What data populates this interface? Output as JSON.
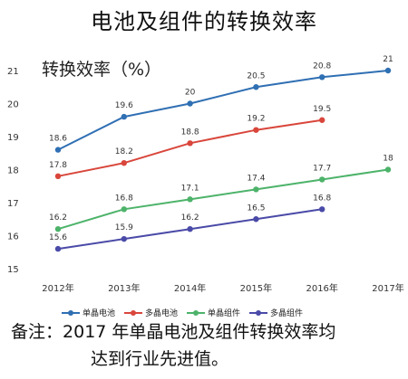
{
  "title": "电池及组件的转换效率",
  "note": {
    "prefix": "备注：",
    "line1": "2017 年单晶电池及组件转换效率均",
    "line2": "达到行业先进值。"
  },
  "chart_data": {
    "type": "line",
    "title": "电池及组件的转换效率",
    "ylabel": "转换效率（%）",
    "xlabel": "",
    "categories": [
      "2012 年",
      "2013 年",
      "2014 年",
      "2015 年",
      "2016 年",
      "2017 年"
    ],
    "ylim": [
      15,
      21
    ],
    "yticks": [
      15,
      16,
      17,
      18,
      19,
      20,
      21
    ],
    "grid": false,
    "legend_position": "bottom",
    "series": [
      {
        "name": "单晶电池",
        "color": "#2f6fb3",
        "values": [
          18.6,
          19.6,
          20,
          20.5,
          20.8,
          21
        ]
      },
      {
        "name": "多晶电池",
        "color": "#d9463b",
        "values": [
          17.8,
          18.2,
          18.8,
          19.2,
          19.5,
          null
        ]
      },
      {
        "name": "单晶组件",
        "color": "#4db36a",
        "values": [
          16.2,
          16.8,
          17.1,
          17.4,
          17.7,
          18
        ]
      },
      {
        "name": "多晶组件",
        "color": "#4a4aa8",
        "values": [
          15.6,
          15.9,
          16.2,
          16.5,
          16.8,
          null
        ]
      }
    ]
  }
}
